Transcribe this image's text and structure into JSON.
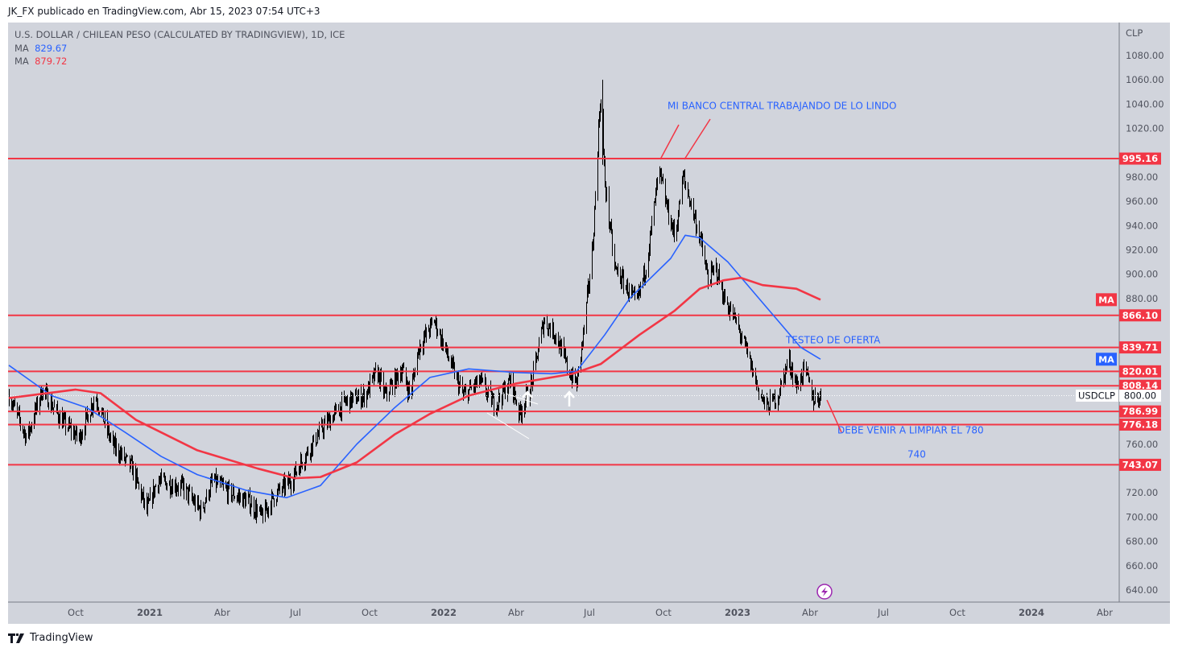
{
  "header": {
    "published": "JK_FX publicado en TradingView.com, Abr 15, 2023 07:54 UTC+3"
  },
  "legend": {
    "title": "U.S. DOLLAR / CHILEAN PESO (CALCULATED BY TRADINGVIEW), 1D, ICE",
    "ma1_label": "MA",
    "ma1_value": "829.67",
    "ma2_label": "MA",
    "ma2_value": "879.72"
  },
  "footer": {
    "brand": "TradingView"
  },
  "colors": {
    "bg": "#d1d4dc",
    "red": "#f23645",
    "blue": "#2962ff",
    "bars": "#000000"
  },
  "chart_data": {
    "type": "ohlc",
    "symbol": "USDCLP",
    "currency_label": "CLP",
    "current_price": "800.00",
    "ylim": [
      630,
      1090
    ],
    "yticks": [
      640,
      660,
      680,
      700,
      720,
      740,
      760,
      780,
      800,
      820,
      840,
      860,
      880,
      900,
      920,
      940,
      960,
      980,
      1000,
      1020,
      1040,
      1060,
      1080
    ],
    "xticks": [
      [
        "2020-10-01",
        "Oct"
      ],
      [
        "2021-01-01",
        "2021"
      ],
      [
        "2021-04-01",
        "Abr"
      ],
      [
        "2021-07-01",
        "Jul"
      ],
      [
        "2021-10-01",
        "Oct"
      ],
      [
        "2022-01-01",
        "2022"
      ],
      [
        "2022-04-01",
        "Abr"
      ],
      [
        "2022-07-01",
        "Jul"
      ],
      [
        "2022-10-01",
        "Oct"
      ],
      [
        "2023-01-01",
        "2023"
      ],
      [
        "2023-04-01",
        "Abr"
      ],
      [
        "2023-07-01",
        "Jul"
      ],
      [
        "2023-10-01",
        "Oct"
      ],
      [
        "2024-01-01",
        "2024"
      ],
      [
        "2024-04-01",
        "Abr"
      ]
    ],
    "price_path": [
      [
        "2020-07-10",
        800
      ],
      [
        "2020-08-01",
        765
      ],
      [
        "2020-08-20",
        805
      ],
      [
        "2020-09-15",
        778
      ],
      [
        "2020-10-05",
        765
      ],
      [
        "2020-10-25",
        800
      ],
      [
        "2020-11-15",
        760
      ],
      [
        "2020-12-10",
        740
      ],
      [
        "2020-12-28",
        705
      ],
      [
        "2021-01-10",
        730
      ],
      [
        "2021-02-10",
        725
      ],
      [
        "2021-03-05",
        705
      ],
      [
        "2021-03-20",
        730
      ],
      [
        "2021-04-10",
        720
      ],
      [
        "2021-05-05",
        712
      ],
      [
        "2021-05-20",
        700
      ],
      [
        "2021-06-05",
        718
      ],
      [
        "2021-06-25",
        730
      ],
      [
        "2021-07-10",
        748
      ],
      [
        "2021-08-05",
        775
      ],
      [
        "2021-09-01",
        795
      ],
      [
        "2021-09-25",
        800
      ],
      [
        "2021-10-10",
        820
      ],
      [
        "2021-10-20",
        800
      ],
      [
        "2021-11-10",
        822
      ],
      [
        "2021-11-20",
        800
      ],
      [
        "2021-12-01",
        840
      ],
      [
        "2021-12-20",
        862
      ],
      [
        "2022-01-10",
        825
      ],
      [
        "2022-01-25",
        800
      ],
      [
        "2022-02-15",
        812
      ],
      [
        "2022-03-05",
        792
      ],
      [
        "2022-03-25",
        812
      ],
      [
        "2022-04-05",
        785
      ],
      [
        "2022-04-20",
        810
      ],
      [
        "2022-05-05",
        862
      ],
      [
        "2022-05-20",
        850
      ],
      [
        "2022-06-05",
        820
      ],
      [
        "2022-06-15",
        810
      ],
      [
        "2022-06-25",
        860
      ],
      [
        "2022-07-05",
        925
      ],
      [
        "2022-07-14",
        1045
      ],
      [
        "2022-07-20",
        975
      ],
      [
        "2022-08-01",
        905
      ],
      [
        "2022-08-15",
        890
      ],
      [
        "2022-08-28",
        875
      ],
      [
        "2022-09-10",
        910
      ],
      [
        "2022-09-25",
        985
      ],
      [
        "2022-10-05",
        955
      ],
      [
        "2022-10-15",
        930
      ],
      [
        "2022-10-25",
        980
      ],
      [
        "2022-11-05",
        955
      ],
      [
        "2022-11-15",
        930
      ],
      [
        "2022-11-25",
        895
      ],
      [
        "2022-12-05",
        905
      ],
      [
        "2022-12-15",
        880
      ],
      [
        "2022-12-30",
        860
      ],
      [
        "2023-01-10",
        840
      ],
      [
        "2023-01-25",
        808
      ],
      [
        "2023-02-05",
        790
      ],
      [
        "2023-02-20",
        800
      ],
      [
        "2023-03-05",
        830
      ],
      [
        "2023-03-15",
        808
      ],
      [
        "2023-03-25",
        822
      ],
      [
        "2023-04-05",
        797
      ],
      [
        "2023-04-14",
        800
      ]
    ],
    "ma_blue": [
      [
        "2020-07-10",
        825
      ],
      [
        "2020-09-01",
        800
      ],
      [
        "2020-10-15",
        790
      ],
      [
        "2020-12-01",
        770
      ],
      [
        "2021-01-15",
        750
      ],
      [
        "2021-03-01",
        735
      ],
      [
        "2021-05-01",
        722
      ],
      [
        "2021-06-20",
        716
      ],
      [
        "2021-08-01",
        726
      ],
      [
        "2021-09-15",
        760
      ],
      [
        "2021-11-01",
        790
      ],
      [
        "2021-12-15",
        815
      ],
      [
        "2022-02-01",
        822
      ],
      [
        "2022-04-01",
        819
      ],
      [
        "2022-05-15",
        818
      ],
      [
        "2022-06-15",
        820
      ],
      [
        "2022-07-20",
        850
      ],
      [
        "2022-08-20",
        880
      ],
      [
        "2022-10-10",
        913
      ],
      [
        "2022-10-28",
        932
      ],
      [
        "2022-11-15",
        930
      ],
      [
        "2022-12-20",
        910
      ],
      [
        "2023-01-25",
        882
      ],
      [
        "2023-02-25",
        858
      ],
      [
        "2023-03-20",
        840
      ],
      [
        "2023-04-14",
        830
      ]
    ],
    "ma_red": [
      [
        "2020-07-10",
        798
      ],
      [
        "2020-10-01",
        805
      ],
      [
        "2020-11-01",
        802
      ],
      [
        "2020-12-15",
        780
      ],
      [
        "2021-03-01",
        755
      ],
      [
        "2021-05-15",
        740
      ],
      [
        "2021-06-30",
        732
      ],
      [
        "2021-08-01",
        733
      ],
      [
        "2021-09-15",
        745
      ],
      [
        "2021-11-01",
        768
      ],
      [
        "2021-12-15",
        785
      ],
      [
        "2022-02-01",
        800
      ],
      [
        "2022-04-01",
        810
      ],
      [
        "2022-06-10",
        818
      ],
      [
        "2022-07-15",
        826
      ],
      [
        "2022-09-01",
        850
      ],
      [
        "2022-10-15",
        870
      ],
      [
        "2022-11-15",
        888
      ],
      [
        "2022-12-15",
        895
      ],
      [
        "2023-01-05",
        897
      ],
      [
        "2023-02-01",
        891
      ],
      [
        "2023-03-15",
        888
      ],
      [
        "2023-04-14",
        879
      ]
    ],
    "levels": [
      "995.16",
      "866.10",
      "839.71",
      "820.01",
      "808.14",
      "786.99",
      "776.18",
      "743.07"
    ],
    "annotations": [
      {
        "text": "MI BANCO CENTRAL TRABAJANDO DE LO LINDO",
        "date": "2022-10-06",
        "price": 1036
      },
      {
        "text": "TESTEO DE OFERTA",
        "date": "2023-03-02",
        "price": 843
      },
      {
        "text": "DEBE VENIR A LIMPIAR EL 780",
        "date": "2023-05-05",
        "price": 769
      },
      {
        "text": "740",
        "date": "2023-07-31",
        "price": 749
      }
    ],
    "ma_tag": "MA"
  }
}
